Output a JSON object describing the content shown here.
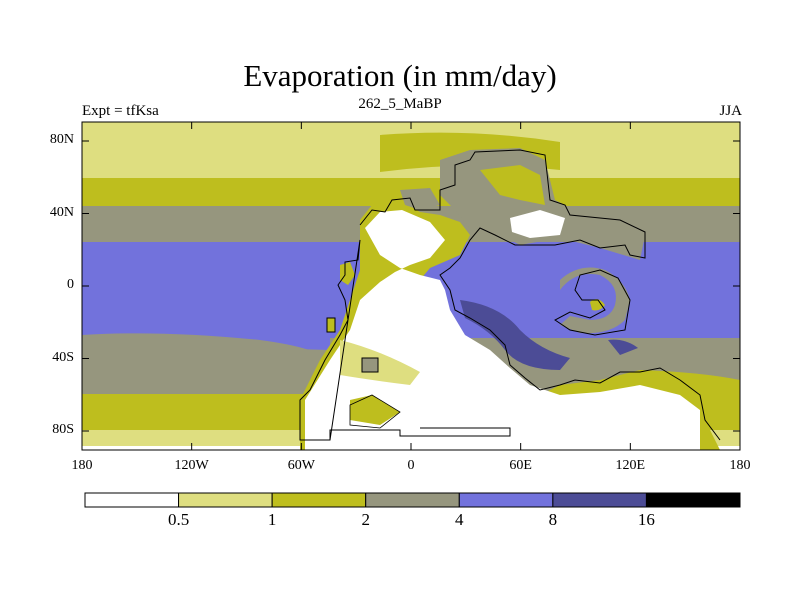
{
  "title": "Evaporation (in mm/day)",
  "experiment_label": "Expt = tfKsa",
  "time_label": "262_5_MaBP",
  "season_label": "JJA",
  "lat_ticks": [
    {
      "lat": 80,
      "label": "80N"
    },
    {
      "lat": 40,
      "label": "40N"
    },
    {
      "lat": 0,
      "label": "0"
    },
    {
      "lat": -40,
      "label": "40S"
    },
    {
      "lat": -80,
      "label": "80S"
    }
  ],
  "lon_ticks": [
    {
      "lon": -180,
      "label": "180"
    },
    {
      "lon": -120,
      "label": "120W"
    },
    {
      "lon": -60,
      "label": "60W"
    },
    {
      "lon": 0,
      "label": "0"
    },
    {
      "lon": 60,
      "label": "60E"
    },
    {
      "lon": 120,
      "label": "120E"
    },
    {
      "lon": 180,
      "label": "180"
    }
  ],
  "colorbar": {
    "levels": [
      "0.5",
      "1",
      "2",
      "4",
      "8",
      "16"
    ],
    "colors": [
      "#ffffff",
      "#dede80",
      "#bebe1e",
      "#96967e",
      "#7272dc",
      "#4c4c96",
      "#000000"
    ]
  },
  "colors": {
    "very_low": "#ffffff",
    "low": "#dede80",
    "mid_low": "#bebe1e",
    "mid": "#96967e",
    "high": "#7272dc",
    "very_high": "#4c4c96"
  }
}
